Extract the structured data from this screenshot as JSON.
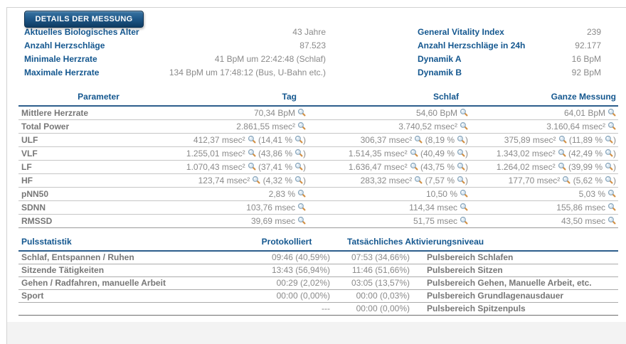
{
  "page": {
    "title_button": "DETAILS DER MESSUNG"
  },
  "colors": {
    "accent_navy": "#14578f",
    "button_top": "#3a75a3",
    "button_bottom": "#0f3c63",
    "value_grey": "#8a8a8a",
    "label_grey": "#777777",
    "magnifier_handle_orange": "#d29044"
  },
  "summary": {
    "left": [
      {
        "label": "Aktuelles Biologisches Alter",
        "value": "43 Jahre"
      },
      {
        "label": "Anzahl Herzschläge",
        "value": "87.523"
      },
      {
        "label": "Minimale Herzrate",
        "value": "41 BpM um 22:42:48 (Schlaf)"
      },
      {
        "label": "Maximale Herzrate",
        "value": "134 BpM um 17:48:12 (Bus, U-Bahn etc.)"
      }
    ],
    "right": [
      {
        "label": "General Vitality Index",
        "value": "239"
      },
      {
        "label": "Anzahl Herzschläge in 24h",
        "value": "92.177"
      },
      {
        "label": "Dynamik A",
        "value": "16 BpM"
      },
      {
        "label": "Dynamik B",
        "value": "92 BpM"
      }
    ]
  },
  "hrv_table": {
    "headers": [
      "Parameter",
      "Tag",
      "Schlaf",
      "Ganze Messung"
    ],
    "rows": [
      {
        "parameter": "Mittlere Herzrate",
        "tag": {
          "value": "70,34 BpM"
        },
        "schlaf": {
          "value": "54,60 BpM"
        },
        "gesamt": {
          "value": "64,01 BpM"
        }
      },
      {
        "parameter": "Total Power",
        "tag": {
          "value": "2.861,55 msec²"
        },
        "schlaf": {
          "value": "3.740,52 msec²"
        },
        "gesamt": {
          "value": "3.160,64 msec²"
        }
      },
      {
        "parameter": "ULF",
        "tag": {
          "value": "412,37 msec²",
          "pct": "14,41 %"
        },
        "schlaf": {
          "value": "306,37 msec²",
          "pct": "8,19 %"
        },
        "gesamt": {
          "value": "375,89 msec²",
          "pct": "11,89 %"
        }
      },
      {
        "parameter": "VLF",
        "tag": {
          "value": "1.255,01 msec²",
          "pct": "43,86 %"
        },
        "schlaf": {
          "value": "1.514,35 msec²",
          "pct": "40,49 %"
        },
        "gesamt": {
          "value": "1.343,02 msec²",
          "pct": "42,49 %"
        }
      },
      {
        "parameter": "LF",
        "tag": {
          "value": "1.070,43 msec²",
          "pct": "37,41 %"
        },
        "schlaf": {
          "value": "1.636,47 msec²",
          "pct": "43,75 %"
        },
        "gesamt": {
          "value": "1.264,02 msec²",
          "pct": "39,99 %"
        }
      },
      {
        "parameter": "HF",
        "tag": {
          "value": "123,74 msec²",
          "pct": "4,32 %"
        },
        "schlaf": {
          "value": "283,32 msec²",
          "pct": "7,57 %"
        },
        "gesamt": {
          "value": "177,70 msec²",
          "pct": "5,62 %"
        }
      },
      {
        "parameter": "pNN50",
        "tag": {
          "value": "2,83 %"
        },
        "schlaf": {
          "value": "10,50 %"
        },
        "gesamt": {
          "value": "5,03 %"
        }
      },
      {
        "parameter": "SDNN",
        "tag": {
          "value": "103,76 msec"
        },
        "schlaf": {
          "value": "114,34 msec"
        },
        "gesamt": {
          "value": "155,86 msec"
        }
      },
      {
        "parameter": "RMSSD",
        "tag": {
          "value": "39,69 msec"
        },
        "schlaf": {
          "value": "51,75 msec"
        },
        "gesamt": {
          "value": "43,50 msec"
        }
      }
    ]
  },
  "pulse_table": {
    "headers": [
      "Pulsstatistik",
      "Protokolliert",
      "Tatsächliches Aktivierungsniveau"
    ],
    "rows": [
      {
        "activity": "Schlaf, Entspannen / Ruhen",
        "protokolliert": "09:46 (40,59%)",
        "tatsaechlich": "07:53 (34,66%)",
        "pulsbereich": "Pulsbereich Schlafen"
      },
      {
        "activity": "Sitzende Tätigkeiten",
        "protokolliert": "13:43 (56,94%)",
        "tatsaechlich": "11:46 (51,66%)",
        "pulsbereich": "Pulsbereich Sitzen"
      },
      {
        "activity": "Gehen / Radfahren, manuelle Arbeit",
        "protokolliert": "00:29 (2,02%)",
        "tatsaechlich": "03:05 (13,57%)",
        "pulsbereich": "Pulsbereich Gehen, Manuelle Arbeit, etc."
      },
      {
        "activity": "Sport",
        "protokolliert": "00:00 (0,00%)",
        "tatsaechlich": "00:00 (0,03%)",
        "pulsbereich": "Pulsbereich Grundlagenausdauer"
      },
      {
        "activity": "",
        "protokolliert": "---",
        "tatsaechlich": "00:00 (0,00%)",
        "pulsbereich": "Pulsbereich Spitzenpuls"
      }
    ]
  }
}
